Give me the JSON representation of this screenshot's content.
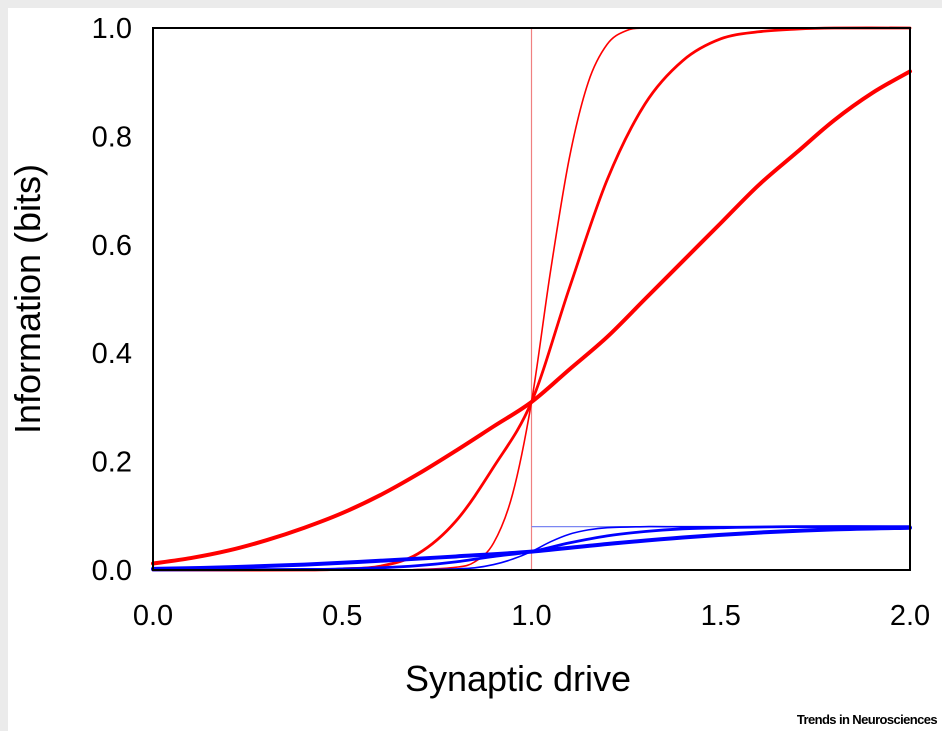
{
  "chart_data": {
    "type": "line",
    "title": "",
    "xlabel": "Synaptic drive",
    "ylabel": "Information (bits)",
    "xlim": [
      0.0,
      2.0
    ],
    "ylim": [
      0.0,
      1.0
    ],
    "x_ticks": [
      "0.0",
      "0.5",
      "1.0",
      "1.5",
      "2.0"
    ],
    "y_ticks": [
      "0.0",
      "0.2",
      "0.4",
      "0.6",
      "0.8",
      "1.0"
    ],
    "grid": false,
    "reference_lines": [
      {
        "orientation": "vertical",
        "x": 1.0,
        "y_range": [
          0.0,
          1.0
        ],
        "color": "#f08080"
      },
      {
        "orientation": "horizontal",
        "y": 0.08,
        "x_range": [
          1.0,
          2.0
        ],
        "color": "#7b86f2"
      }
    ],
    "series": [
      {
        "color": "#ff0000",
        "stroke": "thin",
        "x": [
          0.0,
          0.6,
          0.7,
          0.8,
          0.85,
          0.9,
          0.95,
          1.0,
          1.05,
          1.1,
          1.15,
          1.2,
          1.25,
          1.3,
          1.4,
          1.6,
          2.0
        ],
        "y": [
          0.0,
          0.0,
          0.001,
          0.005,
          0.015,
          0.05,
          0.14,
          0.31,
          0.55,
          0.76,
          0.9,
          0.97,
          0.995,
          1.0,
          1.0,
          1.0,
          1.0
        ]
      },
      {
        "color": "#ff0000",
        "stroke": "medium",
        "x": [
          0.0,
          0.4,
          0.5,
          0.6,
          0.7,
          0.8,
          0.9,
          1.0,
          1.1,
          1.2,
          1.3,
          1.4,
          1.5,
          1.6,
          1.7,
          1.8,
          2.0
        ],
        "y": [
          0.0,
          0.0,
          0.002,
          0.007,
          0.03,
          0.09,
          0.19,
          0.31,
          0.52,
          0.72,
          0.86,
          0.94,
          0.98,
          0.993,
          0.998,
          1.0,
          1.0
        ]
      },
      {
        "color": "#ff0000",
        "stroke": "thick",
        "x": [
          0.0,
          0.1,
          0.2,
          0.3,
          0.4,
          0.5,
          0.6,
          0.7,
          0.8,
          0.9,
          1.0,
          1.1,
          1.2,
          1.3,
          1.4,
          1.5,
          1.6,
          1.7,
          1.8,
          1.9,
          2.0
        ],
        "y": [
          0.012,
          0.022,
          0.036,
          0.055,
          0.078,
          0.105,
          0.138,
          0.177,
          0.22,
          0.265,
          0.31,
          0.37,
          0.43,
          0.5,
          0.57,
          0.64,
          0.71,
          0.77,
          0.83,
          0.88,
          0.92
        ]
      },
      {
        "color": "#0000ff",
        "stroke": "thin",
        "x": [
          0.0,
          0.6,
          0.7,
          0.8,
          0.85,
          0.9,
          0.95,
          1.0,
          1.05,
          1.1,
          1.15,
          1.2,
          1.3,
          1.4,
          2.0
        ],
        "y": [
          0.0,
          0.0,
          0.0005,
          0.002,
          0.004,
          0.01,
          0.02,
          0.034,
          0.052,
          0.066,
          0.074,
          0.078,
          0.08,
          0.08,
          0.08
        ]
      },
      {
        "color": "#0000ff",
        "stroke": "medium",
        "x": [
          0.0,
          0.4,
          0.5,
          0.6,
          0.7,
          0.8,
          0.9,
          1.0,
          1.1,
          1.2,
          1.3,
          1.4,
          1.5,
          1.7,
          2.0
        ],
        "y": [
          0.0,
          0.001,
          0.002,
          0.004,
          0.008,
          0.015,
          0.025,
          0.034,
          0.05,
          0.063,
          0.071,
          0.076,
          0.078,
          0.08,
          0.08
        ]
      },
      {
        "color": "#0000ff",
        "stroke": "thick",
        "x": [
          0.0,
          0.2,
          0.4,
          0.6,
          0.8,
          1.0,
          1.2,
          1.4,
          1.6,
          1.8,
          2.0
        ],
        "y": [
          0.002,
          0.005,
          0.01,
          0.017,
          0.025,
          0.034,
          0.048,
          0.06,
          0.069,
          0.075,
          0.078
        ]
      }
    ]
  },
  "credit": "Trends in Neurosciences"
}
